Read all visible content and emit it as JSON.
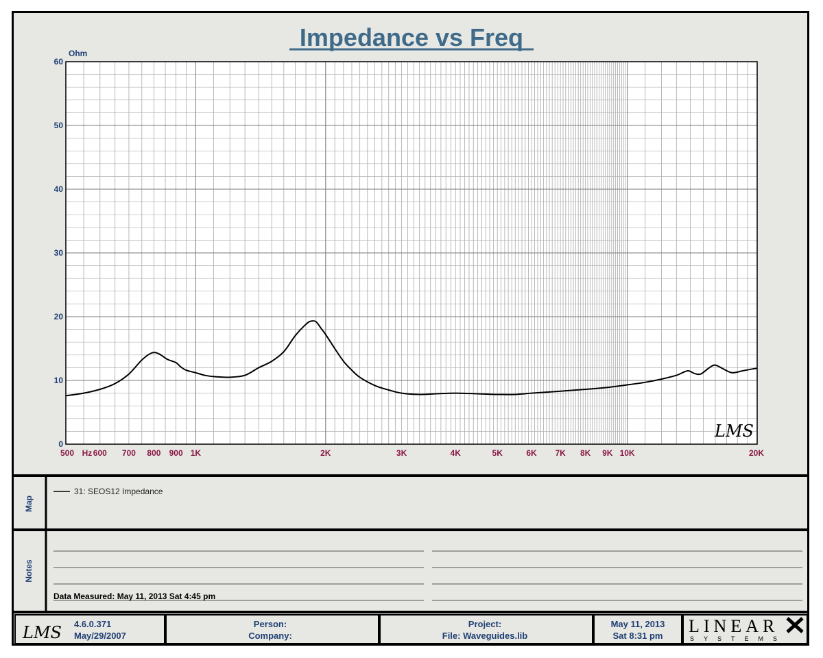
{
  "chart_data": {
    "type": "line",
    "title": "Impedance vs Freq",
    "ylabel": "Ohm",
    "xlabel": "",
    "xscale": "log",
    "xlim": [
      500,
      20000
    ],
    "ylim": [
      0,
      60
    ],
    "grid": true,
    "x_tick_labels": [
      {
        "x": 500,
        "label": "500"
      },
      {
        "x": 560,
        "label": "Hz"
      },
      {
        "x": 600,
        "label": "600"
      },
      {
        "x": 700,
        "label": "700"
      },
      {
        "x": 800,
        "label": "800"
      },
      {
        "x": 900,
        "label": "900"
      },
      {
        "x": 1000,
        "label": "1K"
      },
      {
        "x": 2000,
        "label": "2K"
      },
      {
        "x": 3000,
        "label": "3K"
      },
      {
        "x": 4000,
        "label": "4K"
      },
      {
        "x": 5000,
        "label": "5K"
      },
      {
        "x": 6000,
        "label": "6K"
      },
      {
        "x": 7000,
        "label": "7K"
      },
      {
        "x": 8000,
        "label": "8K"
      },
      {
        "x": 9000,
        "label": "9K"
      },
      {
        "x": 10000,
        "label": "10K"
      },
      {
        "x": 20000,
        "label": "20K"
      }
    ],
    "y_ticks": [
      0,
      10,
      20,
      30,
      40,
      50,
      60
    ],
    "series": [
      {
        "name": "31: SEOS12 Impedance",
        "color": "#000000",
        "points": [
          [
            500,
            7.6
          ],
          [
            550,
            8.0
          ],
          [
            600,
            8.6
          ],
          [
            650,
            9.5
          ],
          [
            700,
            11.0
          ],
          [
            750,
            13.2
          ],
          [
            790,
            14.3
          ],
          [
            820,
            14.2
          ],
          [
            860,
            13.3
          ],
          [
            900,
            12.8
          ],
          [
            920,
            12.2
          ],
          [
            950,
            11.6
          ],
          [
            1000,
            11.2
          ],
          [
            1050,
            10.8
          ],
          [
            1100,
            10.6
          ],
          [
            1200,
            10.5
          ],
          [
            1300,
            10.8
          ],
          [
            1400,
            12.0
          ],
          [
            1500,
            13.0
          ],
          [
            1600,
            14.5
          ],
          [
            1700,
            17.0
          ],
          [
            1800,
            18.8
          ],
          [
            1850,
            19.3
          ],
          [
            1900,
            19.2
          ],
          [
            1950,
            18.2
          ],
          [
            2000,
            17.2
          ],
          [
            2100,
            15.0
          ],
          [
            2200,
            13.0
          ],
          [
            2300,
            11.6
          ],
          [
            2400,
            10.5
          ],
          [
            2600,
            9.2
          ],
          [
            2800,
            8.5
          ],
          [
            3000,
            8.0
          ],
          [
            3300,
            7.8
          ],
          [
            3600,
            7.9
          ],
          [
            4000,
            8.0
          ],
          [
            4500,
            7.9
          ],
          [
            5000,
            7.8
          ],
          [
            5500,
            7.8
          ],
          [
            6000,
            8.0
          ],
          [
            7000,
            8.3
          ],
          [
            8000,
            8.6
          ],
          [
            9000,
            8.9
          ],
          [
            10000,
            9.3
          ],
          [
            11000,
            9.7
          ],
          [
            12000,
            10.2
          ],
          [
            13000,
            10.8
          ],
          [
            13800,
            11.5
          ],
          [
            14300,
            11.1
          ],
          [
            14800,
            11.0
          ],
          [
            15500,
            12.0
          ],
          [
            16000,
            12.4
          ],
          [
            16700,
            11.8
          ],
          [
            17500,
            11.2
          ],
          [
            18500,
            11.5
          ],
          [
            19500,
            11.8
          ],
          [
            20000,
            11.9
          ]
        ]
      }
    ]
  },
  "map_panel": {
    "side_label": "Map",
    "legend_entry": "31: SEOS12 Impedance"
  },
  "notes_panel": {
    "side_label": "Notes",
    "data_measured": "Data Measured: May 11, 2013  Sat  4:45 pm"
  },
  "footer": {
    "version": "4.6.0.371",
    "version_date": "May/29/2007",
    "person_label": "Person:",
    "company_label": "Company:",
    "project_label": "Project:",
    "file_label": "File: Waveguides.lib",
    "date": "May 11, 2013",
    "time": "Sat  8:31 pm",
    "brand": "LINEAR",
    "brand_sub": "SYSTEMS",
    "lms_logo": "LMS"
  },
  "colors": {
    "background": "#e7e8e3",
    "title": "#3f6a8a",
    "axis_y": "#1f3f74",
    "axis_x": "#8a1946",
    "grid": "#9a9a9a"
  }
}
